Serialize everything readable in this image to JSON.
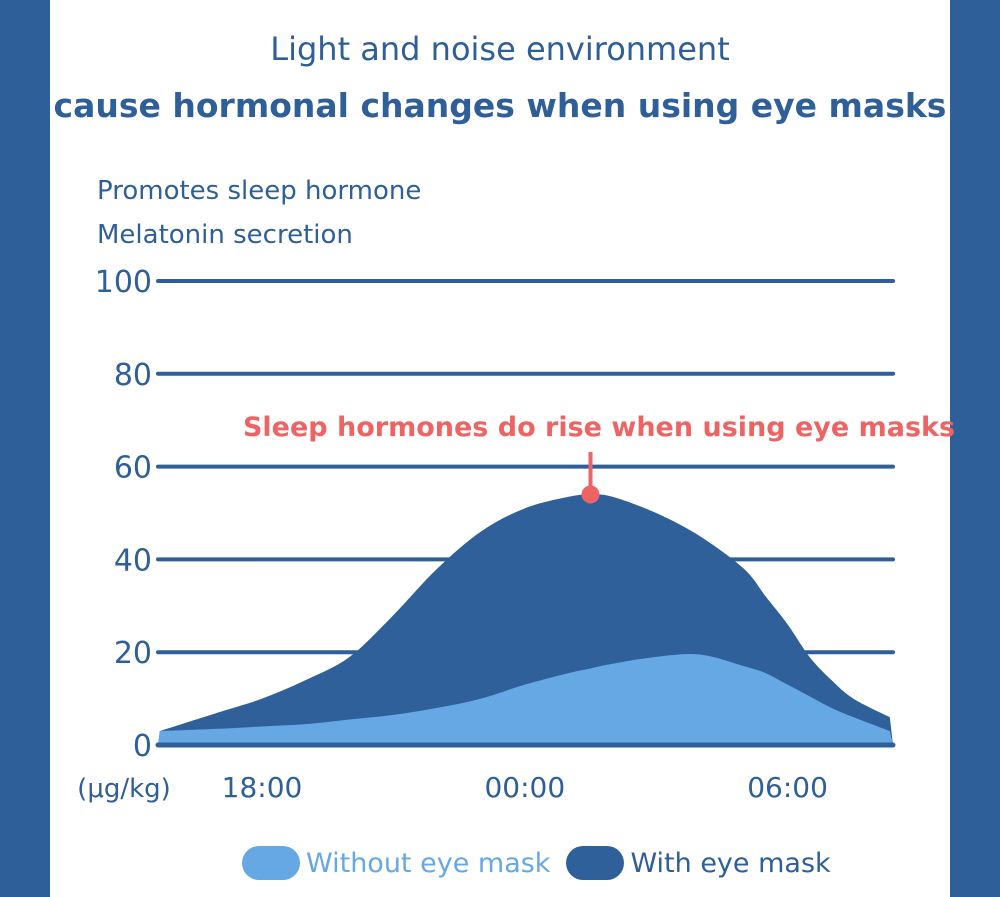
{
  "title_line1": "Light and noise environment",
  "title_line2": "cause hormonal changes when using eye masks",
  "chart_data": {
    "type": "area",
    "ylabel_line1": "Promotes sleep hormone",
    "ylabel_line2": "Melatonin secretion",
    "yunit": "(μg/kg)",
    "ylim": [
      0,
      100
    ],
    "yticks": [
      "0",
      "20",
      "40",
      "60",
      "80",
      "100"
    ],
    "xticks": [
      "18:00",
      "00:00",
      "06:00"
    ],
    "grid": true,
    "legend_position": "bottom",
    "x": [
      "15:40",
      "17:00",
      "18:00",
      "19:00",
      "20:00",
      "21:00",
      "22:00",
      "23:00",
      "00:00",
      "01:00",
      "01:30",
      "02:00",
      "03:00",
      "04:00",
      "05:00",
      "05:30",
      "06:00",
      "06:30",
      "07:00",
      "07:30",
      "08:20"
    ],
    "series": [
      {
        "name": "With eye mask",
        "color": "#30609a",
        "values": [
          3,
          7,
          10,
          14,
          19,
          28,
          38,
          46,
          51,
          53.5,
          54,
          53.5,
          50,
          45,
          38,
          32,
          26,
          19,
          14,
          10,
          6
        ]
      },
      {
        "name": "Without eye mask",
        "color": "#66a8e4",
        "values": [
          3,
          3.5,
          4,
          4.5,
          5.5,
          6.5,
          8,
          10,
          13,
          15.5,
          16.5,
          17.5,
          19,
          19.5,
          17,
          15.5,
          13,
          10.5,
          8,
          6,
          3
        ]
      }
    ],
    "annotation": {
      "text": "Sleep hormones do rise when using eye masks",
      "x": "01:30",
      "y": 54,
      "color": "#ee6464"
    }
  }
}
